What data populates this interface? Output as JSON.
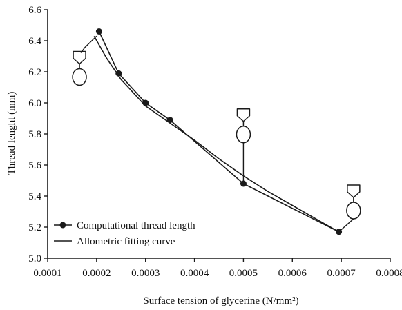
{
  "chart_data": {
    "type": "line",
    "title": "",
    "xlabel": "Surface tension of glycerine (N/mm²)",
    "ylabel": "Thread lenght (mm)",
    "xlim": [
      0.0001,
      0.0008
    ],
    "ylim": [
      5.0,
      6.6
    ],
    "x_ticks": [
      "0.0001",
      "0.0002",
      "0.0003",
      "0.0004",
      "0.0005",
      "0.0006",
      "0.0007",
      "0.0008"
    ],
    "y_ticks": [
      "5.0",
      "5.2",
      "5.4",
      "5.6",
      "5.8",
      "6.0",
      "6.2",
      "6.4",
      "6.6"
    ],
    "grid": false,
    "legend_position": "bottom-left",
    "series": [
      {
        "name": "Computational thread length",
        "style": "line-with-markers",
        "x": [
          0.000205,
          0.000245,
          0.0003,
          0.00035,
          0.0005,
          0.000695
        ],
        "y": [
          6.46,
          6.19,
          6.0,
          5.89,
          5.48,
          5.17
        ]
      },
      {
        "name": "Allometric fitting curve",
        "style": "line",
        "x": [
          0.000195,
          0.00022,
          0.00025,
          0.0003,
          0.00035,
          0.0004,
          0.00045,
          0.0005,
          0.00055,
          0.0006,
          0.00065,
          0.000695
        ],
        "y": [
          6.43,
          6.29,
          6.15,
          5.98,
          5.87,
          5.76,
          5.64,
          5.53,
          5.43,
          5.34,
          5.25,
          5.17
        ]
      }
    ],
    "colors": {
      "ink": "#1a1a1a"
    },
    "annotations": [
      {
        "name": "droplet-annotation-1",
        "shape": "drop-on-thread",
        "x": 0.000165,
        "y": 6.22,
        "leader_to": [
          0.0002,
          6.43
        ]
      },
      {
        "name": "droplet-annotation-2",
        "shape": "drop-on-thread",
        "x": 0.0005,
        "y": 5.85,
        "leader_to": [
          0.0005,
          5.48
        ]
      },
      {
        "name": "droplet-annotation-3",
        "shape": "drop-on-thread",
        "x": 0.000725,
        "y": 5.36,
        "leader_to": [
          0.000695,
          5.17
        ]
      }
    ]
  }
}
